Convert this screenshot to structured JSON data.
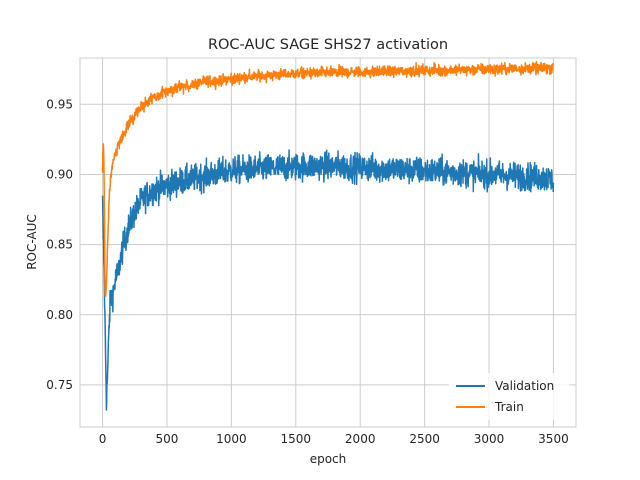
{
  "chart_data": {
    "type": "line",
    "title": "ROC-AUC SAGE SHS27 activation",
    "xlabel": "epoch",
    "ylabel": "ROC-AUC",
    "xlim": [
      -175,
      3675
    ],
    "ylim": [
      0.72,
      0.983
    ],
    "xticks": [
      0,
      500,
      1000,
      1500,
      2000,
      2500,
      3000,
      3500
    ],
    "xtick_labels": [
      "0",
      "500",
      "1000",
      "1500",
      "2000",
      "2500",
      "3000",
      "3500"
    ],
    "yticks": [
      0.75,
      0.8,
      0.85,
      0.9,
      0.95
    ],
    "ytick_labels": [
      "0.75",
      "0.80",
      "0.85",
      "0.90",
      "0.95"
    ],
    "grid": true,
    "legend_position": "lower-right",
    "series": [
      {
        "name": "Validation",
        "color": "#1f77b4",
        "noise": 0.007,
        "x": [
          0,
          10,
          20,
          30,
          40,
          50,
          60,
          80,
          100,
          120,
          150,
          200,
          250,
          300,
          350,
          400,
          450,
          500,
          600,
          700,
          800,
          900,
          1000,
          1200,
          1400,
          1600,
          1800,
          2000,
          2200,
          2400,
          2600,
          2800,
          3000,
          3200,
          3400,
          3500
        ],
        "y": [
          0.88,
          0.84,
          0.79,
          0.74,
          0.76,
          0.79,
          0.81,
          0.815,
          0.825,
          0.83,
          0.845,
          0.862,
          0.873,
          0.881,
          0.886,
          0.889,
          0.891,
          0.892,
          0.895,
          0.897,
          0.899,
          0.901,
          0.903,
          0.904,
          0.905,
          0.906,
          0.906,
          0.905,
          0.904,
          0.903,
          0.902,
          0.901,
          0.9,
          0.899,
          0.898,
          0.896
        ]
      },
      {
        "name": "Train",
        "color": "#ff7f0e",
        "noise": 0.0028,
        "x": [
          0,
          5,
          10,
          15,
          20,
          30,
          40,
          50,
          60,
          80,
          100,
          150,
          200,
          250,
          300,
          400,
          500,
          600,
          700,
          800,
          1000,
          1200,
          1500,
          2000,
          2500,
          3000,
          3500
        ],
        "y": [
          0.9,
          0.926,
          0.91,
          0.87,
          0.81,
          0.82,
          0.85,
          0.88,
          0.895,
          0.908,
          0.915,
          0.926,
          0.935,
          0.943,
          0.948,
          0.955,
          0.959,
          0.962,
          0.964,
          0.966,
          0.968,
          0.97,
          0.972,
          0.973,
          0.974,
          0.975,
          0.976
        ]
      }
    ]
  }
}
